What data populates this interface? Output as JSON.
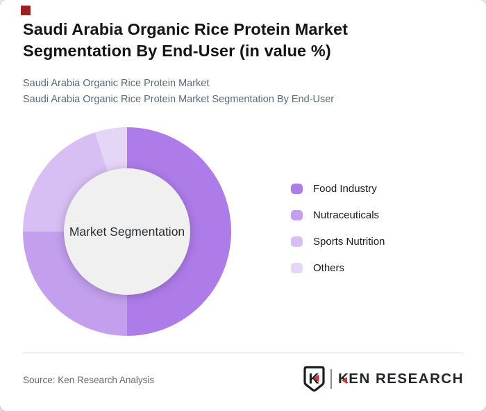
{
  "page": {
    "title": "Saudi Arabia Organic Rice Protein Market Segmentation By End-User (in value %)",
    "subtitle_line1": "Saudi Arabia Organic Rice Protein Market",
    "subtitle_line2": "Saudi Arabia Organic Rice Protein Market Segmentation By End-User"
  },
  "chart_data": {
    "type": "pie",
    "variant": "donut",
    "title": "Saudi Arabia Organic Rice Protein Market Segmentation By End-User (in value %)",
    "center_label": "Market Segmentation",
    "categories": [
      "Food Industry",
      "Nutraceuticals",
      "Sports Nutrition",
      "Others"
    ],
    "values": [
      50,
      25,
      20,
      5
    ],
    "unit": "value %",
    "colors": [
      "#ae7ce9",
      "#c39fee",
      "#d7bff3",
      "#e5d6f8"
    ],
    "legend_position": "right",
    "start_angle_deg": 0,
    "inner_radius_ratio": 0.61,
    "center_bg": "#f0f0f0"
  },
  "footer": {
    "source_label": "Source: Ken Research Analysis",
    "logo": {
      "badge_letter": "K",
      "wordmark_k": "K",
      "wordmark_rest": "EN RESEARCH",
      "accent_color": "#c23b3b",
      "ink_color": "#1a1d20"
    }
  },
  "theme": {
    "accent_square_color": "#9e1f1f",
    "page_bg": "#e9eaec",
    "card_bg": "#ffffff",
    "divider_color": "#d7dae1",
    "muted_text": "#5c6a74",
    "title_text": "#121417"
  }
}
